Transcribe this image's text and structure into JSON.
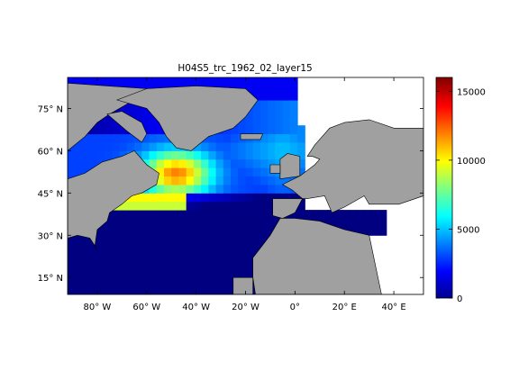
{
  "chart_data": {
    "type": "heatmap",
    "title": "H04S5_trc_1962_02_layer15",
    "xlabel": "",
    "ylabel": "",
    "xlim": [
      -92,
      52
    ],
    "ylim": [
      9,
      86
    ],
    "x_ticks": [
      {
        "value": -80,
        "label": "80° W"
      },
      {
        "value": -60,
        "label": "60° W"
      },
      {
        "value": -40,
        "label": "40° W"
      },
      {
        "value": -20,
        "label": "20° W"
      },
      {
        "value": 0,
        "label": "0°"
      },
      {
        "value": 20,
        "label": "20° E"
      },
      {
        "value": 40,
        "label": "40° E"
      }
    ],
    "y_ticks": [
      {
        "value": 15,
        "label": "15° N"
      },
      {
        "value": 30,
        "label": "30° N"
      },
      {
        "value": 45,
        "label": "45° N"
      },
      {
        "value": 60,
        "label": "60° N"
      },
      {
        "value": 75,
        "label": "75° N"
      }
    ],
    "colorbar": {
      "colormap": "jet",
      "range": [
        0,
        16000
      ],
      "ticks": [
        0,
        5000,
        10000,
        15000
      ]
    },
    "land_color": "#a0a0a0",
    "nodata_color": "#ffffff",
    "approx_field": [
      {
        "region": "subtropical Atlantic 10-40N",
        "value": 0
      },
      {
        "region": "Mediterranean",
        "value": 500
      },
      {
        "region": "Gulf Stream edge 40-45N",
        "value": 2500
      },
      {
        "region": "Labrador Sea / Irminger 55-65N",
        "value": 7500
      },
      {
        "region": "off Newfoundland 45-52N",
        "value": 11000
      },
      {
        "region": "Greenland Sea",
        "value": 3500
      },
      {
        "region": "Norwegian Sea",
        "value": 4000
      },
      {
        "region": "Arctic edge 80N",
        "value": 1500
      }
    ]
  }
}
